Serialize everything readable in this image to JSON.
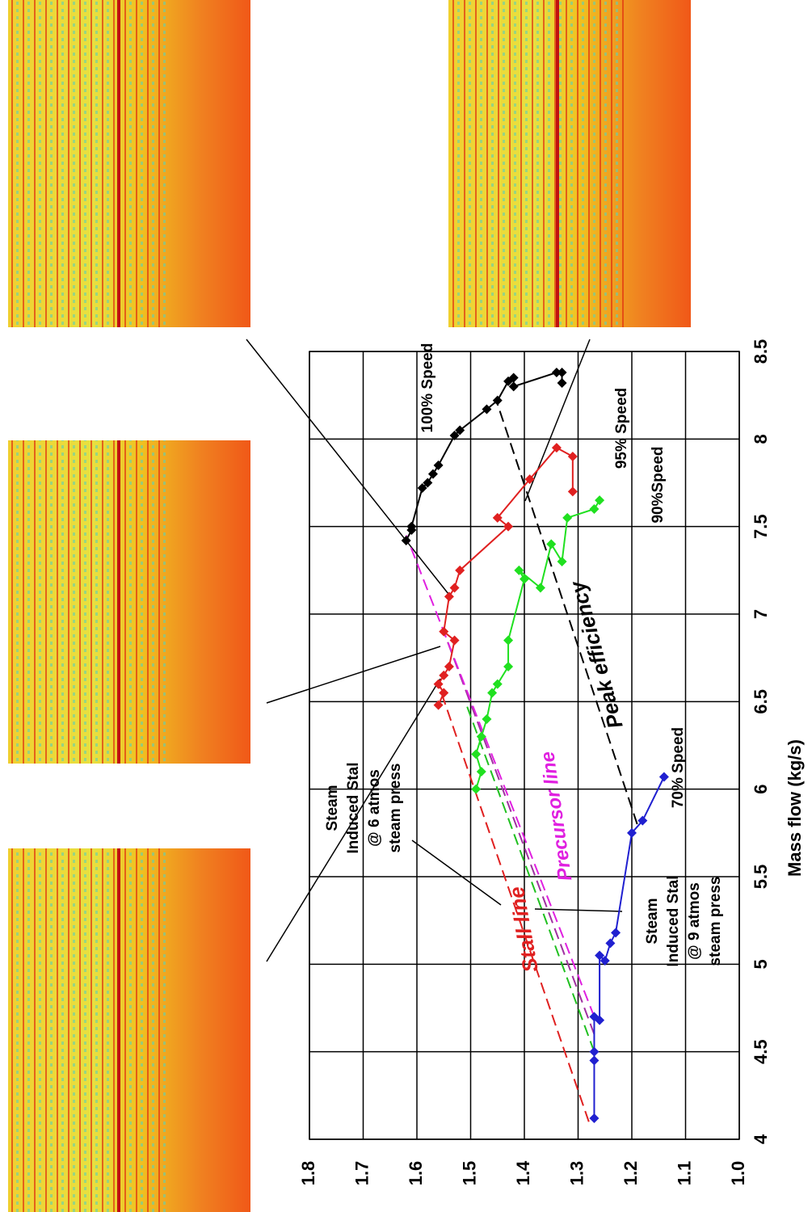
{
  "chart_data": {
    "type": "scatter",
    "x_label": "Mass flow (kg/s)",
    "xlim": [
      4,
      8.5
    ],
    "xticks": [
      4,
      4.5,
      5,
      5.5,
      6,
      6.5,
      7,
      7.5,
      8,
      8.5
    ],
    "ylim": [
      1,
      1.8
    ],
    "yticks": [
      {
        "value": 1,
        "label": "1.0"
      },
      1.1,
      1.2,
      1.3,
      1.4,
      1.5,
      1.6,
      1.7,
      1.8
    ],
    "grid": true,
    "series": [
      {
        "name": "100% Speed",
        "color": "#000000",
        "x": [
          7.42,
          7.48,
          7.5,
          7.72,
          7.75,
          7.8,
          7.85,
          8.02,
          8.05,
          8.17,
          8.22,
          8.33,
          8.35,
          8.3,
          8.38,
          8.38,
          8.32
        ],
        "values": [
          1.62,
          1.61,
          1.61,
          1.59,
          1.58,
          1.57,
          1.56,
          1.53,
          1.52,
          1.47,
          1.45,
          1.43,
          1.42,
          1.42,
          1.34,
          1.33,
          1.33
        ]
      },
      {
        "name": "95% Speed",
        "color": "#e02020",
        "x": [
          6.48,
          6.55,
          6.6,
          6.65,
          6.7,
          6.85,
          6.9,
          7.1,
          7.15,
          7.25,
          7.5,
          7.55,
          7.77,
          7.95,
          7.9,
          7.7
        ],
        "values": [
          1.56,
          1.55,
          1.56,
          1.55,
          1.54,
          1.53,
          1.55,
          1.54,
          1.53,
          1.52,
          1.43,
          1.45,
          1.39,
          1.34,
          1.31,
          1.31
        ]
      },
      {
        "name": "90%Speed",
        "color": "#20e020",
        "x": [
          6.0,
          6.1,
          6.2,
          6.3,
          6.4,
          6.55,
          6.6,
          6.7,
          6.85,
          7.2,
          7.25,
          7.15,
          7.4,
          7.3,
          7.55,
          7.6,
          7.65
        ],
        "values": [
          1.49,
          1.48,
          1.49,
          1.48,
          1.47,
          1.46,
          1.45,
          1.43,
          1.43,
          1.4,
          1.41,
          1.37,
          1.35,
          1.33,
          1.32,
          1.27,
          1.26
        ]
      },
      {
        "name": "70% Speed",
        "color": "#2020d0",
        "x": [
          4.12,
          4.45,
          4.5,
          4.7,
          4.68,
          5.05,
          5.02,
          5.12,
          5.18,
          5.75,
          5.82,
          6.07
        ],
        "values": [
          1.27,
          1.27,
          1.27,
          1.27,
          1.26,
          1.26,
          1.25,
          1.24,
          1.23,
          1.2,
          1.18,
          1.14
        ]
      }
    ],
    "reference_lines": [
      {
        "name": "Stall line",
        "color": "#e02020",
        "x": [
          4.1,
          6.6
        ],
        "values": [
          1.28,
          1.56
        ]
      },
      {
        "color": "#20c020",
        "x": [
          4.5,
          6.5
        ],
        "values": [
          1.27,
          1.51
        ]
      },
      {
        "color": "#a030a0",
        "x": [
          4.6,
          6.9
        ],
        "values": [
          1.27,
          1.55
        ]
      },
      {
        "name": "Precursor line",
        "color": "#e020e0",
        "x": [
          4.7,
          7.45
        ],
        "values": [
          1.27,
          1.62
        ]
      },
      {
        "name": "Peak efficiency",
        "color": "#000000",
        "x": [
          5.8,
          8.2
        ],
        "values": [
          1.19,
          1.45
        ]
      }
    ],
    "annotations": [
      [
        "Steam",
        "Induced Stal",
        "@ 6 atmos",
        "steam press"
      ],
      [
        "Steam",
        "Induced Stal",
        "@ 9 atmos",
        "steam press"
      ]
    ]
  }
}
